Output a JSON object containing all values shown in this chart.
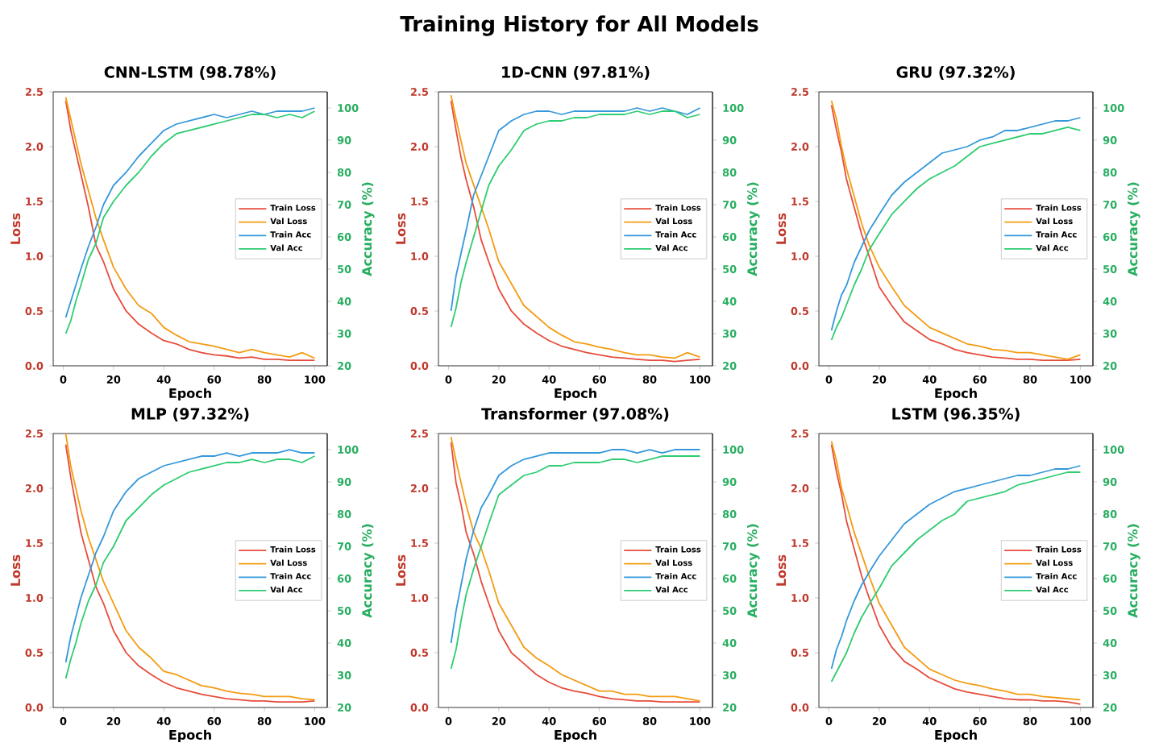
{
  "chart_data": [
    {
      "type": "line",
      "title": "CNN-LSTM (98.78%)",
      "xlabel": "Epoch",
      "ylabel": "Loss",
      "y2label": "Accuracy (%)",
      "annotations": [
        "Training History for All Models"
      ],
      "legend": "right",
      "x": [
        1,
        3,
        5,
        7,
        10,
        13,
        16,
        20,
        25,
        30,
        35,
        40,
        45,
        50,
        55,
        60,
        65,
        70,
        75,
        80,
        85,
        90,
        95,
        100
      ],
      "xlim": [
        -4,
        105
      ],
      "xticks": [
        0,
        20,
        40,
        60,
        80,
        100
      ],
      "ylim": [
        0,
        2.5
      ],
      "yticks": [
        {
          "value": 0,
          "label": "0.0"
        },
        0.5,
        {
          "value": 1,
          "label": "1.0"
        },
        1.5,
        {
          "value": 2,
          "label": "2.0"
        },
        2.5
      ],
      "y2lim": [
        20,
        105
      ],
      "y2ticks": [
        20,
        30,
        40,
        50,
        60,
        70,
        80,
        90,
        100
      ],
      "series": [
        {
          "name": "Train Loss",
          "color": "#e74c3c",
          "values": [
            2.42,
            2.15,
            1.95,
            1.75,
            1.45,
            1.1,
            0.95,
            0.7,
            0.5,
            0.38,
            0.3,
            0.23,
            0.2,
            0.15,
            0.12,
            0.1,
            0.09,
            0.07,
            0.08,
            0.06,
            0.06,
            0.05,
            0.05,
            0.05
          ]
        },
        {
          "name": "Val Loss",
          "color": "#f39c12",
          "values": [
            2.45,
            2.25,
            2.05,
            1.85,
            1.6,
            1.35,
            1.15,
            0.9,
            0.7,
            0.55,
            0.48,
            0.35,
            0.28,
            0.22,
            0.2,
            0.18,
            0.15,
            0.12,
            0.15,
            0.12,
            0.1,
            0.08,
            0.12,
            0.07
          ]
        },
        {
          "name": "Train Acc",
          "color": "#3498db",
          "axis": "y2",
          "values": [
            35,
            40,
            45,
            50,
            57,
            63,
            70,
            76,
            80,
            85,
            89,
            93,
            95,
            96,
            97,
            98,
            97,
            98,
            99,
            98,
            99,
            99,
            99,
            100
          ]
        },
        {
          "name": "Val Acc",
          "color": "#2ecc71",
          "axis": "y2",
          "values": [
            30,
            34,
            40,
            45,
            53,
            58,
            66,
            71,
            76,
            80,
            85,
            89,
            92,
            93,
            94,
            95,
            96,
            97,
            98,
            98,
            97,
            98,
            97,
            99
          ]
        }
      ]
    },
    {
      "type": "line",
      "title": "1D-CNN (97.81%)",
      "xlabel": "Epoch",
      "ylabel": "Loss",
      "y2label": "Accuracy (%)",
      "legend": "right",
      "x": [
        1,
        3,
        5,
        7,
        10,
        13,
        16,
        20,
        25,
        30,
        35,
        40,
        45,
        50,
        55,
        60,
        65,
        70,
        75,
        80,
        85,
        90,
        95,
        100
      ],
      "xlim": [
        -4,
        105
      ],
      "xticks": [
        0,
        20,
        40,
        60,
        80,
        100
      ],
      "ylim": [
        0,
        2.5
      ],
      "yticks": [
        {
          "value": 0,
          "label": "0.0"
        },
        0.5,
        {
          "value": 1,
          "label": "1.0"
        },
        1.5,
        {
          "value": 2,
          "label": "2.0"
        },
        2.5
      ],
      "y2lim": [
        20,
        105
      ],
      "y2ticks": [
        20,
        30,
        40,
        50,
        60,
        70,
        80,
        90,
        100
      ],
      "series": [
        {
          "name": "Train Loss",
          "color": "#e74c3c",
          "values": [
            2.42,
            2.15,
            1.9,
            1.7,
            1.45,
            1.15,
            0.95,
            0.7,
            0.5,
            0.38,
            0.3,
            0.23,
            0.18,
            0.15,
            0.12,
            0.1,
            0.08,
            0.07,
            0.06,
            0.05,
            0.05,
            0.04,
            0.05,
            0.06
          ]
        },
        {
          "name": "Val Loss",
          "color": "#f39c12",
          "values": [
            2.47,
            2.25,
            2.05,
            1.85,
            1.65,
            1.45,
            1.25,
            0.95,
            0.75,
            0.55,
            0.45,
            0.35,
            0.28,
            0.22,
            0.2,
            0.17,
            0.15,
            0.12,
            0.1,
            0.1,
            0.08,
            0.07,
            0.12,
            0.08
          ]
        },
        {
          "name": "Train Acc",
          "color": "#3498db",
          "axis": "y2",
          "values": [
            37,
            48,
            55,
            62,
            73,
            79,
            85,
            93,
            96,
            98,
            99,
            99,
            98,
            99,
            99,
            99,
            99,
            99,
            100,
            99,
            100,
            99,
            98,
            100
          ]
        },
        {
          "name": "Val Acc",
          "color": "#2ecc71",
          "axis": "y2",
          "values": [
            32,
            38,
            46,
            52,
            60,
            68,
            76,
            82,
            87,
            93,
            95,
            96,
            96,
            97,
            97,
            98,
            98,
            98,
            99,
            98,
            99,
            99,
            97,
            98
          ]
        }
      ]
    },
    {
      "type": "line",
      "title": "GRU (97.32%)",
      "xlabel": "Epoch",
      "ylabel": "Loss",
      "y2label": "Accuracy (%)",
      "legend": "right",
      "x": [
        1,
        3,
        5,
        7,
        10,
        13,
        16,
        20,
        25,
        30,
        35,
        40,
        45,
        50,
        55,
        60,
        65,
        70,
        75,
        80,
        85,
        90,
        95,
        100
      ],
      "xlim": [
        -4,
        105
      ],
      "xticks": [
        0,
        20,
        40,
        60,
        80,
        100
      ],
      "ylim": [
        0,
        2.5
      ],
      "yticks": [
        {
          "value": 0,
          "label": "0.0"
        },
        0.5,
        {
          "value": 1,
          "label": "1.0"
        },
        1.5,
        {
          "value": 2,
          "label": "2.0"
        },
        2.5
      ],
      "y2lim": [
        20,
        105
      ],
      "y2ticks": [
        20,
        30,
        40,
        50,
        60,
        70,
        80,
        90,
        100
      ],
      "series": [
        {
          "name": "Train Loss",
          "color": "#e74c3c",
          "values": [
            2.38,
            2.15,
            1.95,
            1.7,
            1.45,
            1.2,
            1.0,
            0.72,
            0.55,
            0.4,
            0.32,
            0.24,
            0.2,
            0.15,
            0.12,
            0.1,
            0.08,
            0.07,
            0.06,
            0.06,
            0.05,
            0.05,
            0.05,
            0.06
          ]
        },
        {
          "name": "Val Loss",
          "color": "#f39c12",
          "values": [
            2.42,
            2.25,
            2.0,
            1.8,
            1.55,
            1.3,
            1.1,
            0.9,
            0.72,
            0.55,
            0.45,
            0.35,
            0.3,
            0.25,
            0.2,
            0.18,
            0.15,
            0.14,
            0.12,
            0.12,
            0.1,
            0.08,
            0.06,
            0.1
          ]
        },
        {
          "name": "Train Acc",
          "color": "#3498db",
          "axis": "y2",
          "values": [
            31,
            37,
            42,
            45,
            52,
            57,
            62,
            67,
            73,
            77,
            80,
            83,
            86,
            87,
            88,
            90,
            91,
            93,
            93,
            94,
            95,
            96,
            96,
            97
          ]
        },
        {
          "name": "Val Acc",
          "color": "#2ecc71",
          "axis": "y2",
          "values": [
            28,
            32,
            35,
            39,
            45,
            50,
            56,
            61,
            67,
            71,
            75,
            78,
            80,
            82,
            85,
            88,
            89,
            90,
            91,
            92,
            92,
            93,
            94,
            93
          ]
        }
      ]
    },
    {
      "type": "line",
      "title": "MLP (97.32%)",
      "xlabel": "Epoch",
      "ylabel": "Loss",
      "y2label": "Accuracy (%)",
      "legend": "right",
      "x": [
        1,
        3,
        5,
        7,
        10,
        13,
        16,
        20,
        25,
        30,
        35,
        40,
        45,
        50,
        55,
        60,
        65,
        70,
        75,
        80,
        85,
        90,
        95,
        100
      ],
      "xlim": [
        -4,
        105
      ],
      "xticks": [
        0,
        20,
        40,
        60,
        80,
        100
      ],
      "ylim": [
        0,
        2.5
      ],
      "yticks": [
        {
          "value": 0,
          "label": "0.0"
        },
        0.5,
        {
          "value": 1,
          "label": "1.0"
        },
        1.5,
        {
          "value": 2,
          "label": "2.0"
        },
        2.5
      ],
      "y2lim": [
        20,
        105
      ],
      "y2ticks": [
        20,
        30,
        40,
        50,
        60,
        70,
        80,
        90,
        100
      ],
      "series": [
        {
          "name": "Train Loss",
          "color": "#e74c3c",
          "values": [
            2.4,
            2.1,
            1.85,
            1.6,
            1.35,
            1.1,
            0.95,
            0.7,
            0.5,
            0.38,
            0.3,
            0.23,
            0.18,
            0.15,
            0.12,
            0.1,
            0.08,
            0.07,
            0.06,
            0.06,
            0.05,
            0.05,
            0.05,
            0.06
          ]
        },
        {
          "name": "Val Loss",
          "color": "#f39c12",
          "values": [
            2.5,
            2.2,
            2.0,
            1.8,
            1.55,
            1.35,
            1.15,
            0.95,
            0.7,
            0.55,
            0.45,
            0.33,
            0.3,
            0.25,
            0.2,
            0.18,
            0.15,
            0.13,
            0.12,
            0.1,
            0.1,
            0.1,
            0.08,
            0.07
          ]
        },
        {
          "name": "Train Acc",
          "color": "#3498db",
          "axis": "y2",
          "values": [
            34,
            42,
            48,
            54,
            61,
            68,
            73,
            81,
            87,
            91,
            93,
            95,
            96,
            97,
            98,
            98,
            99,
            98,
            99,
            99,
            99,
            100,
            99,
            99
          ]
        },
        {
          "name": "Val Acc",
          "color": "#2ecc71",
          "axis": "y2",
          "values": [
            29,
            35,
            40,
            46,
            53,
            58,
            65,
            70,
            78,
            82,
            86,
            89,
            91,
            93,
            94,
            95,
            96,
            96,
            97,
            96,
            97,
            97,
            96,
            98
          ]
        }
      ]
    },
    {
      "type": "line",
      "title": "Transformer (97.08%)",
      "xlabel": "Epoch",
      "ylabel": "Loss",
      "y2label": "Accuracy (%)",
      "legend": "right",
      "x": [
        1,
        3,
        5,
        7,
        10,
        13,
        16,
        20,
        25,
        30,
        35,
        40,
        45,
        50,
        55,
        60,
        65,
        70,
        75,
        80,
        85,
        90,
        95,
        100
      ],
      "xlim": [
        -4,
        105
      ],
      "xticks": [
        0,
        20,
        40,
        60,
        80,
        100
      ],
      "ylim": [
        0,
        2.5
      ],
      "yticks": [
        {
          "value": 0,
          "label": "0.0"
        },
        0.5,
        {
          "value": 1,
          "label": "1.0"
        },
        1.5,
        {
          "value": 2,
          "label": "2.0"
        },
        2.5
      ],
      "y2lim": [
        20,
        105
      ],
      "y2ticks": [
        20,
        30,
        40,
        50,
        60,
        70,
        80,
        90,
        100
      ],
      "series": [
        {
          "name": "Train Loss",
          "color": "#e74c3c",
          "values": [
            2.42,
            2.05,
            1.85,
            1.6,
            1.4,
            1.15,
            0.95,
            0.7,
            0.5,
            0.4,
            0.3,
            0.23,
            0.18,
            0.15,
            0.13,
            0.1,
            0.08,
            0.07,
            0.06,
            0.06,
            0.05,
            0.05,
            0.05,
            0.05
          ]
        },
        {
          "name": "Val Loss",
          "color": "#f39c12",
          "values": [
            2.47,
            2.25,
            2.05,
            1.85,
            1.6,
            1.45,
            1.25,
            0.95,
            0.75,
            0.55,
            0.45,
            0.38,
            0.3,
            0.25,
            0.2,
            0.15,
            0.15,
            0.12,
            0.12,
            0.1,
            0.1,
            0.1,
            0.08,
            0.06
          ]
        },
        {
          "name": "Train Acc",
          "color": "#3498db",
          "axis": "y2",
          "values": [
            40,
            50,
            58,
            66,
            75,
            82,
            86,
            92,
            95,
            97,
            98,
            99,
            99,
            99,
            99,
            99,
            100,
            100,
            99,
            100,
            99,
            100,
            100,
            100
          ]
        },
        {
          "name": "Val Acc",
          "color": "#2ecc71",
          "axis": "y2",
          "values": [
            32,
            38,
            47,
            55,
            63,
            70,
            77,
            86,
            89,
            92,
            93,
            95,
            95,
            96,
            96,
            96,
            97,
            97,
            96,
            97,
            98,
            98,
            98,
            98
          ]
        }
      ]
    },
    {
      "type": "line",
      "title": "LSTM (96.35%)",
      "xlabel": "Epoch",
      "ylabel": "Loss",
      "y2label": "Accuracy (%)",
      "legend": "right",
      "x": [
        1,
        3,
        5,
        7,
        10,
        13,
        16,
        20,
        25,
        30,
        35,
        40,
        45,
        50,
        55,
        60,
        65,
        70,
        75,
        80,
        85,
        90,
        95,
        100
      ],
      "xlim": [
        -4,
        105
      ],
      "xticks": [
        0,
        20,
        40,
        60,
        80,
        100
      ],
      "ylim": [
        0,
        2.5
      ],
      "yticks": [
        {
          "value": 0,
          "label": "0.0"
        },
        0.5,
        {
          "value": 1,
          "label": "1.0"
        },
        1.5,
        {
          "value": 2,
          "label": "2.0"
        },
        2.5
      ],
      "y2lim": [
        20,
        105
      ],
      "y2ticks": [
        20,
        30,
        40,
        50,
        60,
        70,
        80,
        90,
        100
      ],
      "series": [
        {
          "name": "Train Loss",
          "color": "#e74c3c",
          "values": [
            2.4,
            2.15,
            1.95,
            1.7,
            1.45,
            1.2,
            1.0,
            0.75,
            0.55,
            0.42,
            0.35,
            0.27,
            0.22,
            0.17,
            0.14,
            0.12,
            0.1,
            0.08,
            0.07,
            0.07,
            0.06,
            0.06,
            0.05,
            0.03
          ]
        },
        {
          "name": "Val Loss",
          "color": "#f39c12",
          "values": [
            2.43,
            2.25,
            2.0,
            1.85,
            1.6,
            1.4,
            1.2,
            0.95,
            0.75,
            0.55,
            0.45,
            0.35,
            0.3,
            0.25,
            0.22,
            0.2,
            0.17,
            0.15,
            0.12,
            0.12,
            0.1,
            0.09,
            0.08,
            0.07
          ]
        },
        {
          "name": "Train Acc",
          "color": "#3498db",
          "axis": "y2",
          "values": [
            32,
            38,
            42,
            47,
            53,
            58,
            62,
            67,
            72,
            77,
            80,
            83,
            85,
            87,
            88,
            89,
            90,
            91,
            92,
            92,
            93,
            94,
            94,
            95
          ]
        },
        {
          "name": "Val Acc",
          "color": "#2ecc71",
          "axis": "y2",
          "values": [
            28,
            31,
            34,
            37,
            43,
            48,
            52,
            57,
            64,
            68,
            72,
            75,
            78,
            80,
            84,
            85,
            86,
            87,
            89,
            90,
            91,
            92,
            93,
            93
          ]
        }
      ]
    }
  ]
}
